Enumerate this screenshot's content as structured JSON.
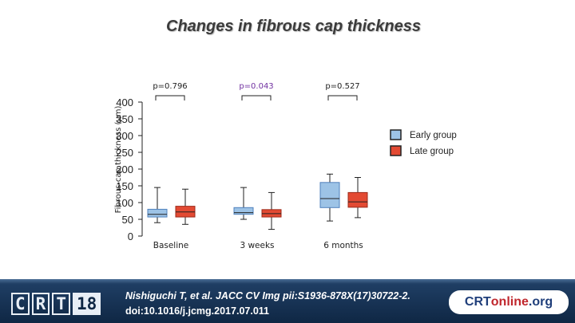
{
  "title": "Changes in fibrous cap thickness",
  "chart_data": {
    "type": "box",
    "ylabel": "Fibrous-cap thickness (μm)",
    "ylim": [
      0,
      400
    ],
    "yticks": [
      "400",
      "350",
      "300",
      "250",
      "200",
      "150",
      "100",
      "50",
      "0"
    ],
    "categories": [
      "Baseline",
      "3 weeks",
      "6 months"
    ],
    "p_values": [
      {
        "label": "p=0.796",
        "color": "#222222"
      },
      {
        "label": "p=0.043",
        "color": "#7030a0"
      },
      {
        "label": "p=0.527",
        "color": "#222222"
      }
    ],
    "series": [
      {
        "name": "Early group",
        "color": "#9dc3e6",
        "stroke": "#4f81bd",
        "boxes": [
          {
            "min": 40,
            "q1": 57,
            "median": 65,
            "q3": 80,
            "max": 145
          },
          {
            "min": 50,
            "q1": 65,
            "median": 70,
            "q3": 85,
            "max": 145
          },
          {
            "min": 45,
            "q1": 85,
            "median": 112,
            "q3": 160,
            "max": 185
          }
        ]
      },
      {
        "name": "Late group",
        "color": "#e34a33",
        "stroke": "#9c2a1a",
        "boxes": [
          {
            "min": 35,
            "q1": 57,
            "median": 72,
            "q3": 89,
            "max": 140
          },
          {
            "min": 20,
            "q1": 57,
            "median": 67,
            "q3": 79,
            "max": 130
          },
          {
            "min": 55,
            "q1": 86,
            "median": 102,
            "q3": 130,
            "max": 175
          }
        ]
      }
    ],
    "legend_position": "right"
  },
  "footer": {
    "logo_letters": [
      "C",
      "R",
      "T",
      "18"
    ],
    "citation_line1": "Nishiguchi T, et al. JACC CV Img pii:S1936-878X(17)30722-2.",
    "citation_line2": "doi:10.1016/j.jcmg.2017.07.011",
    "brand": [
      "CRT",
      "online",
      ".org"
    ]
  }
}
